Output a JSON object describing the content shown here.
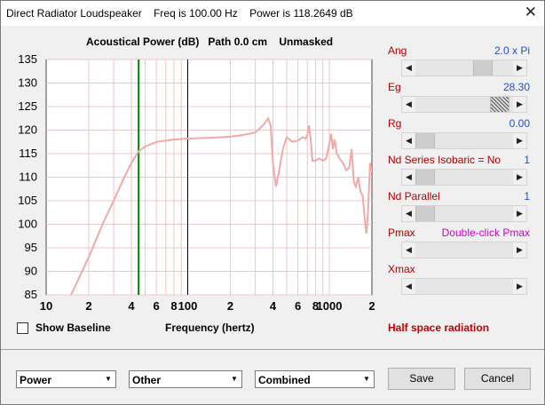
{
  "window": {
    "title": "Direct Radiator Loudspeaker    Freq is 100.00 Hz    Power is 118.2649 dB",
    "close_glyph": "✕"
  },
  "graph": {
    "title": "Acoustical Power (dB)   Path 0.0 cm    Unmasked"
  },
  "chart_data": {
    "type": "line",
    "title": "Acoustical Power (dB)   Path 0.0 cm    Unmasked",
    "xlabel": "Frequency (hertz)",
    "ylabel": "",
    "x_scale": "log",
    "xlim": [
      10,
      2000
    ],
    "ylim": [
      85,
      135
    ],
    "y_ticks": [
      85,
      90,
      95,
      100,
      105,
      110,
      115,
      120,
      125,
      130,
      135
    ],
    "x_tick_labels": [
      {
        "x": 10,
        "label": "10"
      },
      {
        "x": 20,
        "label": "2"
      },
      {
        "x": 40,
        "label": "4"
      },
      {
        "x": 60,
        "label": "6"
      },
      {
        "x": 80,
        "label": "8"
      },
      {
        "x": 100,
        "label": "100"
      },
      {
        "x": 200,
        "label": "2"
      },
      {
        "x": 400,
        "label": "4"
      },
      {
        "x": 600,
        "label": "6"
      },
      {
        "x": 800,
        "label": "8"
      },
      {
        "x": 1000,
        "label": "1000"
      },
      {
        "x": 2000,
        "label": "2"
      }
    ],
    "grid": true,
    "markers": [
      {
        "x": 45,
        "color": "#008000"
      },
      {
        "x": 100,
        "color": "#000000"
      }
    ],
    "series": [
      {
        "color": "#f4a8a8",
        "points": [
          [
            10,
            71
          ],
          [
            15,
            85
          ],
          [
            20,
            93
          ],
          [
            25,
            100
          ],
          [
            30,
            105
          ],
          [
            35,
            109.5
          ],
          [
            40,
            113
          ],
          [
            45,
            115.5
          ],
          [
            50,
            116.5
          ],
          [
            60,
            117.5
          ],
          [
            70,
            117.8
          ],
          [
            80,
            118
          ],
          [
            100,
            118.2
          ],
          [
            150,
            118.4
          ],
          [
            200,
            118.6
          ],
          [
            250,
            119
          ],
          [
            300,
            119.5
          ],
          [
            340,
            121
          ],
          [
            370,
            122.5
          ],
          [
            385,
            121
          ],
          [
            400,
            113
          ],
          [
            420,
            108
          ],
          [
            440,
            111
          ],
          [
            470,
            116
          ],
          [
            500,
            118.5
          ],
          [
            550,
            117.5
          ],
          [
            600,
            117.8
          ],
          [
            650,
            118.5
          ],
          [
            680,
            118.2
          ],
          [
            700,
            119
          ],
          [
            720,
            121
          ],
          [
            740,
            118
          ],
          [
            760,
            113.5
          ],
          [
            800,
            113.5
          ],
          [
            850,
            114
          ],
          [
            900,
            113.5
          ],
          [
            950,
            114
          ],
          [
            1000,
            117
          ],
          [
            1030,
            119.2
          ],
          [
            1060,
            116
          ],
          [
            1090,
            118
          ],
          [
            1130,
            115
          ],
          [
            1180,
            114
          ],
          [
            1250,
            113
          ],
          [
            1320,
            111.5
          ],
          [
            1380,
            112
          ],
          [
            1440,
            116
          ],
          [
            1490,
            109
          ],
          [
            1540,
            108
          ],
          [
            1600,
            110
          ],
          [
            1660,
            107
          ],
          [
            1720,
            106
          ],
          [
            1780,
            101
          ],
          [
            1830,
            98
          ],
          [
            1880,
            103
          ],
          [
            1940,
            113
          ],
          [
            1980,
            112
          ],
          [
            2000,
            111
          ]
        ]
      }
    ]
  },
  "controls": {
    "show_baseline": "Show Baseline",
    "frequency_label": "Frequency (hertz)",
    "half_space": "Half space radiation"
  },
  "params": [
    {
      "label": "Ang",
      "value": "2.0 x Pi",
      "level": 0.74
    },
    {
      "label": "Eg",
      "value": "28.30",
      "level": 0.955
    },
    {
      "label": "Rg",
      "value": "0.00",
      "level": 0.0
    },
    {
      "label": "Nd Series    Isobaric = No",
      "value": "1",
      "level": 0.0
    },
    {
      "label": "Nd  Parallel",
      "value": "1",
      "level": 0.0
    },
    {
      "label": "Pmax",
      "value": "Double-click Pmax",
      "level": null
    },
    {
      "label": "Xmax",
      "value": "",
      "level": null
    }
  ],
  "bottom": {
    "dropdown1": "Power",
    "dropdown2": "Other",
    "dropdown3": "Combined",
    "save": "Save",
    "cancel": "Cancel"
  },
  "colors": {
    "curve": "#f4a8a8",
    "grid": "#e8c8c8",
    "marker_green": "#008000",
    "param_label": "#b00000",
    "param_value": "#1f4fd0",
    "pmax_value": "#d000d0",
    "half_space": "#c00000"
  }
}
